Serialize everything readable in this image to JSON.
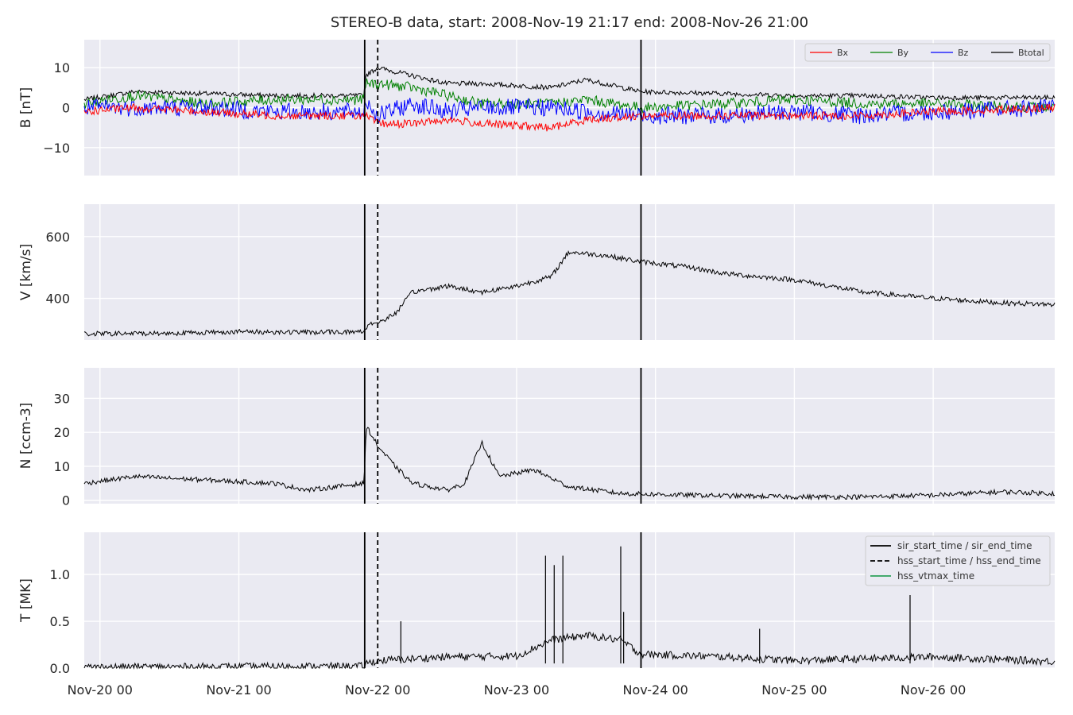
{
  "chart_data": {
    "type": "line",
    "title": "STEREO-B data, start: 2008-Nov-19 21:17  end: 2008-Nov-26 21:00",
    "x_range": [
      "2008-11-19 21:17",
      "2008-11-26 21:00"
    ],
    "x_tick_labels": [
      "Nov-20 00",
      "Nov-21 00",
      "Nov-22 00",
      "Nov-23 00",
      "Nov-24 00",
      "Nov-25 00",
      "Nov-26 00"
    ],
    "x_ticks": [
      "2008-11-20 00:00",
      "2008-11-21 00:00",
      "2008-11-22 00:00",
      "2008-11-23 00:00",
      "2008-11-24 00:00",
      "2008-11-25 00:00",
      "2008-11-26 00:00"
    ],
    "grid": true,
    "event_lines": [
      {
        "name": "sir_start_time / sir_end_time",
        "style": "solid",
        "times": [
          "2008-11-21 21:45",
          "2008-11-23 21:30"
        ]
      },
      {
        "name": "hss_start_time / hss_end_time",
        "style": "dashed",
        "times": [
          "2008-11-22 00:00"
        ]
      },
      {
        "name": "hss_vtmax_time",
        "style": "solid-green",
        "times": []
      }
    ],
    "event_legend": {
      "placement": "top-right",
      "entries": [
        {
          "label": "sir_start_time / sir_end_time",
          "color": "#000000",
          "style": "solid"
        },
        {
          "label": "hss_start_time / hss_end_time",
          "color": "#000000",
          "style": "dashed"
        },
        {
          "label": "hss_vtmax_time",
          "color": "#2ca05a",
          "style": "solid"
        }
      ]
    },
    "panels": [
      {
        "id": "B",
        "ylabel": "B [nT]",
        "ylim": [
          -17,
          17
        ],
        "yticks": [
          -10,
          0,
          10
        ],
        "ytick_labels": [
          "−10",
          "0",
          "10"
        ],
        "legend": {
          "placement": "top-right",
          "entries": [
            {
              "label": "Bx",
              "color": "#ff0000"
            },
            {
              "label": "By",
              "color": "#008000"
            },
            {
              "label": "Bz",
              "color": "#0000ff"
            },
            {
              "label": "Btotal",
              "color": "#000000"
            }
          ]
        },
        "series": [
          {
            "name": "Btotal",
            "color": "#000000",
            "noise": 0.6,
            "x": [
              "2008-11-19 21:17",
              "2008-11-20 06:00",
              "2008-11-20 18:00",
              "2008-11-21 06:00",
              "2008-11-21 21:40",
              "2008-11-21 21:50",
              "2008-11-22 00:00",
              "2008-11-22 06:00",
              "2008-11-22 12:00",
              "2008-11-22 18:00",
              "2008-11-23 06:00",
              "2008-11-23 12:00",
              "2008-11-23 21:30",
              "2008-11-24 12:00",
              "2008-11-25 00:00",
              "2008-11-25 12:00",
              "2008-11-26 00:00",
              "2008-11-26 21:00"
            ],
            "y": [
              2,
              4,
              3.5,
              3,
              3,
              8,
              10,
              8,
              6,
              6,
              5,
              7,
              4,
              3.5,
              3,
              3,
              2.5,
              2.5
            ]
          },
          {
            "name": "By",
            "color": "#008000",
            "noise": 1.3,
            "x": [
              "2008-11-19 21:17",
              "2008-11-20 06:00",
              "2008-11-20 18:00",
              "2008-11-21 06:00",
              "2008-11-21 21:40",
              "2008-11-21 21:50",
              "2008-11-22 00:00",
              "2008-11-22 06:00",
              "2008-11-22 12:00",
              "2008-11-22 18:00",
              "2008-11-23 06:00",
              "2008-11-23 12:00",
              "2008-11-23 21:30",
              "2008-11-24 12:00",
              "2008-11-25 00:00",
              "2008-11-25 12:00",
              "2008-11-26 00:00",
              "2008-11-26 21:00"
            ],
            "y": [
              1,
              3,
              1,
              2,
              2,
              6,
              6,
              5,
              3,
              1,
              1,
              2,
              0,
              1,
              2,
              1,
              1,
              0
            ]
          },
          {
            "name": "Bz",
            "color": "#0000ff",
            "noise": 2.2,
            "x": [
              "2008-11-19 21:17",
              "2008-11-20 06:00",
              "2008-11-20 18:00",
              "2008-11-21 06:00",
              "2008-11-21 21:40",
              "2008-11-21 21:50",
              "2008-11-22 00:00",
              "2008-11-22 06:00",
              "2008-11-22 12:00",
              "2008-11-22 18:00",
              "2008-11-23 06:00",
              "2008-11-23 12:00",
              "2008-11-23 21:30",
              "2008-11-24 12:00",
              "2008-11-25 00:00",
              "2008-11-25 12:00",
              "2008-11-26 00:00",
              "2008-11-26 21:00"
            ],
            "y": [
              0,
              0,
              0,
              -1,
              -1,
              2,
              -2,
              1,
              -1,
              0,
              0,
              -1,
              -2,
              -2,
              -1,
              -2,
              -1,
              0
            ]
          },
          {
            "name": "Bx",
            "color": "#ff0000",
            "noise": 1.0,
            "x": [
              "2008-11-19 21:17",
              "2008-11-20 06:00",
              "2008-11-20 18:00",
              "2008-11-21 06:00",
              "2008-11-21 21:40",
              "2008-11-21 21:50",
              "2008-11-22 00:00",
              "2008-11-22 06:00",
              "2008-11-22 12:00",
              "2008-11-22 18:00",
              "2008-11-23 06:00",
              "2008-11-23 12:00",
              "2008-11-23 21:30",
              "2008-11-24 12:00",
              "2008-11-25 00:00",
              "2008-11-25 12:00",
              "2008-11-26 00:00",
              "2008-11-26 21:00"
            ],
            "y": [
              -1,
              0,
              -1,
              -2,
              -2,
              -2,
              -4,
              -4,
              -3,
              -4,
              -5,
              -3,
              -2,
              -2,
              -2,
              -2,
              -1,
              0
            ]
          }
        ]
      },
      {
        "id": "V",
        "ylabel": "V [km/s]",
        "ylim": [
          265,
          705
        ],
        "yticks": [
          400,
          600
        ],
        "ytick_labels": [
          "400",
          "600"
        ],
        "series": [
          {
            "name": "V",
            "color": "#000000",
            "noise": 8,
            "x": [
              "2008-11-19 21:17",
              "2008-11-20 12:00",
              "2008-11-21 00:00",
              "2008-11-21 12:00",
              "2008-11-21 21:40",
              "2008-11-21 22:30",
              "2008-11-22 00:00",
              "2008-11-22 03:00",
              "2008-11-22 06:00",
              "2008-11-22 12:00",
              "2008-11-22 18:00",
              "2008-11-23 00:00",
              "2008-11-23 06:00",
              "2008-11-23 09:00",
              "2008-11-23 15:00",
              "2008-11-23 21:00",
              "2008-11-24 06:00",
              "2008-11-24 12:00",
              "2008-11-25 00:00",
              "2008-11-25 12:00",
              "2008-11-26 00:00",
              "2008-11-26 12:00",
              "2008-11-26 21:00"
            ],
            "y": [
              285,
              287,
              292,
              290,
              292,
              320,
              320,
              350,
              420,
              440,
              420,
              440,
              470,
              550,
              540,
              520,
              500,
              480,
              460,
              420,
              400,
              385,
              380
            ]
          }
        ]
      },
      {
        "id": "N",
        "ylabel": "N [ccm-3]",
        "ylim": [
          -1,
          39
        ],
        "yticks": [
          0,
          10,
          20,
          30
        ],
        "ytick_labels": [
          "0",
          "10",
          "20",
          "30"
        ],
        "series": [
          {
            "name": "N",
            "color": "#000000",
            "noise": 0.7,
            "x": [
              "2008-11-19 21:17",
              "2008-11-20 06:00",
              "2008-11-20 18:00",
              "2008-11-21 06:00",
              "2008-11-21 12:00",
              "2008-11-21 21:40",
              "2008-11-21 22:00",
              "2008-11-22 00:00",
              "2008-11-22 03:00",
              "2008-11-22 06:00",
              "2008-11-22 12:00",
              "2008-11-22 15:00",
              "2008-11-22 18:00",
              "2008-11-22 21:00",
              "2008-11-23 03:00",
              "2008-11-23 09:00",
              "2008-11-23 18:00",
              "2008-11-24 06:00",
              "2008-11-25 00:00",
              "2008-11-25 12:00",
              "2008-11-26 00:00",
              "2008-11-26 12:00",
              "2008-11-26 21:00"
            ],
            "y": [
              5,
              7,
              6,
              5,
              3,
              5,
              22,
              16,
              10,
              5,
              3,
              5,
              17,
              7,
              9,
              4,
              2,
              1.5,
              1,
              1,
              1.5,
              2.5,
              2
            ]
          }
        ]
      },
      {
        "id": "T",
        "ylabel": "T [MK]",
        "ylim": [
          0,
          1.45
        ],
        "yticks": [
          0.0,
          0.5,
          1.0
        ],
        "ytick_labels": [
          "0.0",
          "0.5",
          "1.0"
        ],
        "series": [
          {
            "name": "T",
            "color": "#000000",
            "noise": 0.04,
            "x": [
              "2008-11-19 21:17",
              "2008-11-21 21:40",
              "2008-11-21 22:00",
              "2008-11-22 00:00",
              "2008-11-22 12:00",
              "2008-11-23 00:00",
              "2008-11-23 06:00",
              "2008-11-23 12:00",
              "2008-11-23 18:00",
              "2008-11-23 21:30",
              "2008-11-24 12:00",
              "2008-11-25 00:00",
              "2008-11-25 12:00",
              "2008-11-26 00:00",
              "2008-11-26 21:00"
            ],
            "y": [
              0.01,
              0.02,
              0.05,
              0.08,
              0.12,
              0.13,
              0.3,
              0.35,
              0.3,
              0.15,
              0.12,
              0.08,
              0.1,
              0.12,
              0.07
            ]
          },
          {
            "name": "T-spikes",
            "color": "#000000",
            "spikes": [
              [
                "2008-11-22 04:00",
                0.5
              ],
              [
                "2008-11-23 05:00",
                1.2
              ],
              [
                "2008-11-23 06:30",
                1.1
              ],
              [
                "2008-11-23 08:00",
                1.2
              ],
              [
                "2008-11-23 18:00",
                1.3
              ],
              [
                "2008-11-23 18:30",
                0.6
              ],
              [
                "2008-11-25 20:00",
                0.78
              ],
              [
                "2008-11-24 18:00",
                0.42
              ]
            ]
          }
        ]
      }
    ]
  }
}
